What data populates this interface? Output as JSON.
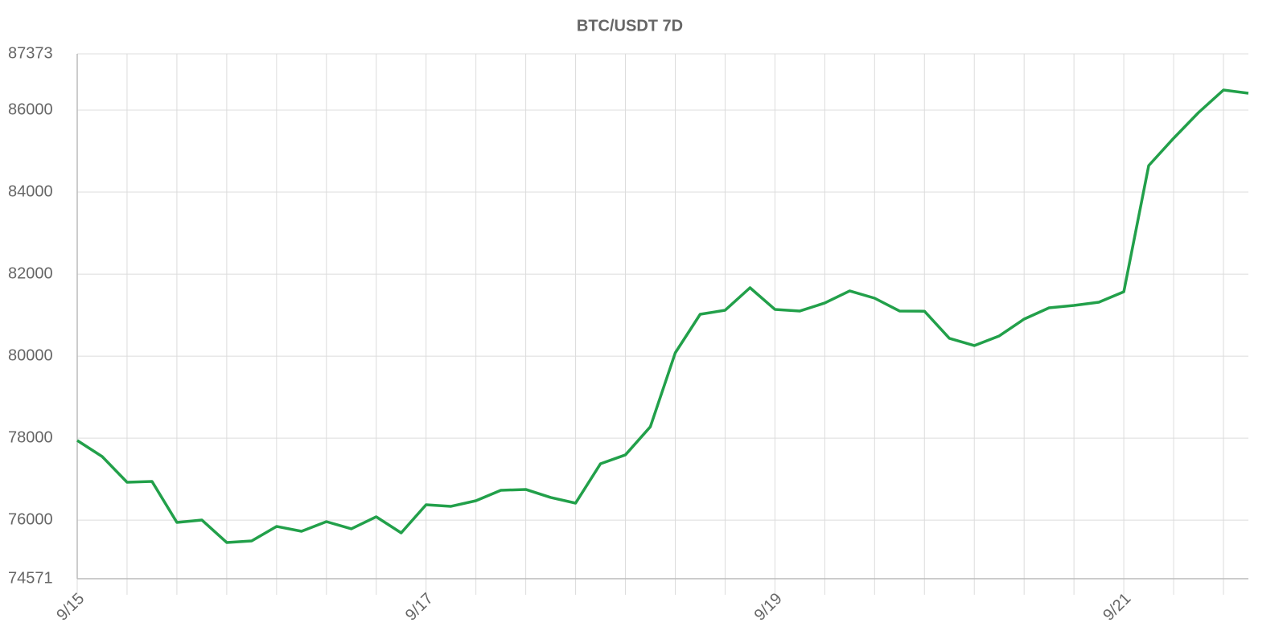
{
  "chart_data": {
    "type": "line",
    "title": "BTC/USDT 7D",
    "categories": [
      "9/15",
      null,
      null,
      null,
      null,
      null,
      null,
      null,
      null,
      null,
      null,
      null,
      null,
      null,
      "9/17",
      null,
      null,
      null,
      null,
      null,
      null,
      null,
      null,
      null,
      null,
      null,
      null,
      null,
      "9/19",
      null,
      null,
      null,
      null,
      null,
      null,
      null,
      null,
      null,
      null,
      null,
      null,
      null,
      "9/21",
      null,
      null,
      null,
      null,
      null
    ],
    "series": [
      {
        "name": "BTC/USDT",
        "color": "#22a04a",
        "values": [
          77943,
          77551,
          76924,
          76944,
          75944,
          76003,
          75454,
          75493,
          75846,
          75728,
          75963,
          75787,
          76081,
          75689,
          76375,
          76336,
          76473,
          76728,
          76748,
          76552,
          76414,
          77375,
          77591,
          78277,
          80080,
          81021,
          81119,
          81668,
          81139,
          81100,
          81296,
          81590,
          81413,
          81100,
          81095,
          80433,
          80257,
          80492,
          80904,
          81178,
          81237,
          81315,
          81570,
          84648,
          85315,
          85942,
          86491,
          86412
        ]
      }
    ],
    "ylim": [
      74571,
      87373
    ],
    "yticks": [
      74571,
      76000,
      78000,
      80000,
      82000,
      84000,
      86000,
      87373
    ],
    "grid": true
  }
}
